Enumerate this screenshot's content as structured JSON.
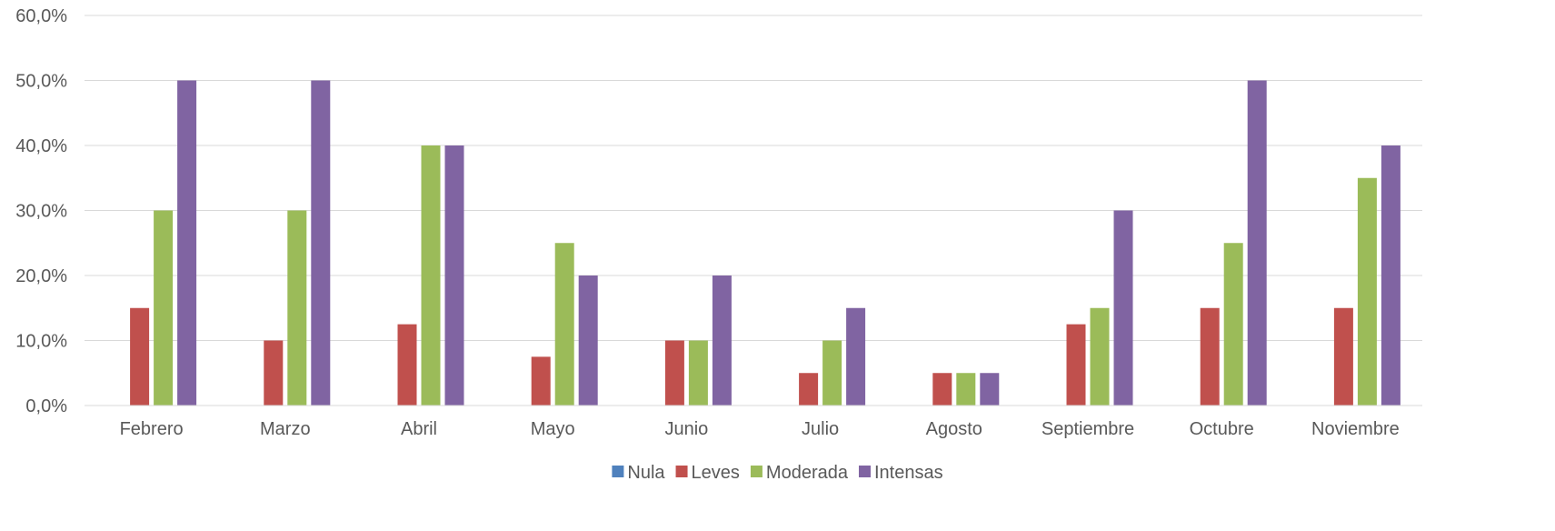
{
  "chart_data": {
    "type": "bar",
    "title": "",
    "xlabel": "",
    "ylabel": "",
    "ylim": [
      0,
      60
    ],
    "yticks": [
      0,
      10,
      20,
      30,
      40,
      50,
      60
    ],
    "ytick_labels": [
      "0,0%",
      "10,0%",
      "20,0%",
      "30,0%",
      "40,0%",
      "50,0%",
      "60,0%"
    ],
    "grid": true,
    "legend_position": "bottom",
    "categories": [
      "Febrero",
      "Marzo",
      "Abril",
      "Mayo",
      "Junio",
      "Julio",
      "Agosto",
      "Septiembre",
      "Octubre",
      "Noviembre"
    ],
    "series": [
      {
        "name": "Nula",
        "color": "#4f81bd",
        "values": [
          0,
          0,
          0,
          0,
          0,
          0,
          0,
          0,
          0,
          0
        ]
      },
      {
        "name": "Leves",
        "color": "#c0504d",
        "values": [
          15,
          10,
          12.5,
          7.5,
          10,
          5,
          5,
          12.5,
          15,
          15
        ]
      },
      {
        "name": "Moderada",
        "color": "#9bbb59",
        "values": [
          30,
          30,
          40,
          25,
          10,
          10,
          5,
          15,
          25,
          35
        ]
      },
      {
        "name": "Intensas",
        "color": "#8064a2",
        "values": [
          50,
          50,
          40,
          20,
          20,
          15,
          5,
          30,
          50,
          40
        ]
      }
    ]
  }
}
